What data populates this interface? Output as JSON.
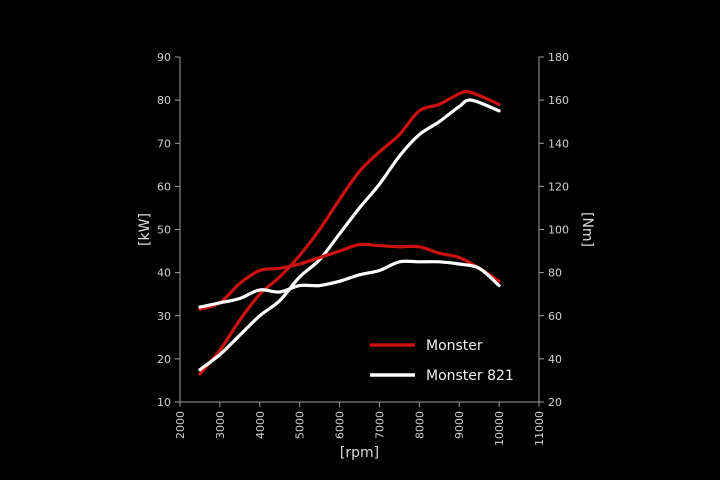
{
  "chart_data": {
    "type": "line",
    "xlabel": "[rpm]",
    "ylabel_left": "[kW]",
    "ylabel_right": "[Nm]",
    "xlim": [
      2000,
      11000
    ],
    "x_ticks": [
      2000,
      3000,
      4000,
      5000,
      6000,
      7000,
      8000,
      9000,
      10000,
      11000
    ],
    "ylim_left": [
      10,
      90
    ],
    "y_ticks_left": [
      10,
      20,
      30,
      40,
      50,
      60,
      70,
      80,
      90
    ],
    "ylim_right": [
      20,
      180
    ],
    "y_ticks_right": [
      20,
      40,
      60,
      80,
      100,
      120,
      140,
      160,
      180
    ],
    "grid": false,
    "legend_position": "bottom-right",
    "legend": [
      {
        "name": "Monster",
        "color": "#cc1111"
      },
      {
        "name": "Monster 821",
        "color": "#ffffff"
      }
    ],
    "series": [
      {
        "name": "Monster",
        "measure": "power",
        "axis": "left",
        "color": "#cc1111",
        "x": [
          2500,
          3000,
          3500,
          4000,
          4500,
          5000,
          5500,
          6000,
          6500,
          7000,
          7500,
          8000,
          8500,
          9000,
          9300,
          10000
        ],
        "y": [
          16.5,
          22,
          29,
          35,
          39,
          44,
          50,
          57,
          63.5,
          68,
          72,
          77.5,
          79,
          81.5,
          81.8,
          79
        ]
      },
      {
        "name": "Monster 821",
        "measure": "power",
        "axis": "left",
        "color": "#ffffff",
        "x": [
          2500,
          3000,
          3500,
          4000,
          4500,
          5000,
          5500,
          6000,
          6500,
          7000,
          7500,
          8000,
          8500,
          9000,
          9300,
          10000
        ],
        "y": [
          17.5,
          21,
          25.5,
          30,
          33.5,
          39,
          43,
          49,
          55,
          60.5,
          67,
          72,
          75,
          78.5,
          80,
          77.5
        ]
      },
      {
        "name": "Monster",
        "measure": "torque",
        "axis": "right",
        "color": "#cc1111",
        "x": [
          2500,
          3000,
          3500,
          4000,
          4500,
          5000,
          5500,
          6000,
          6500,
          7000,
          7500,
          8000,
          8500,
          9000,
          9500,
          10000
        ],
        "y": [
          63,
          66,
          75,
          81,
          82,
          84,
          87,
          90,
          93,
          92.5,
          92,
          92,
          89,
          87,
          82,
          76
        ]
      },
      {
        "name": "Monster 821",
        "measure": "torque",
        "axis": "right",
        "color": "#ffffff",
        "x": [
          2500,
          3000,
          3500,
          4000,
          4500,
          5000,
          5500,
          6000,
          6500,
          7000,
          7500,
          8000,
          8500,
          9000,
          9500,
          10000
        ],
        "y": [
          64,
          66,
          68,
          72,
          71,
          74,
          74,
          76,
          79,
          81,
          85,
          85,
          85,
          84,
          82,
          74
        ]
      }
    ]
  }
}
